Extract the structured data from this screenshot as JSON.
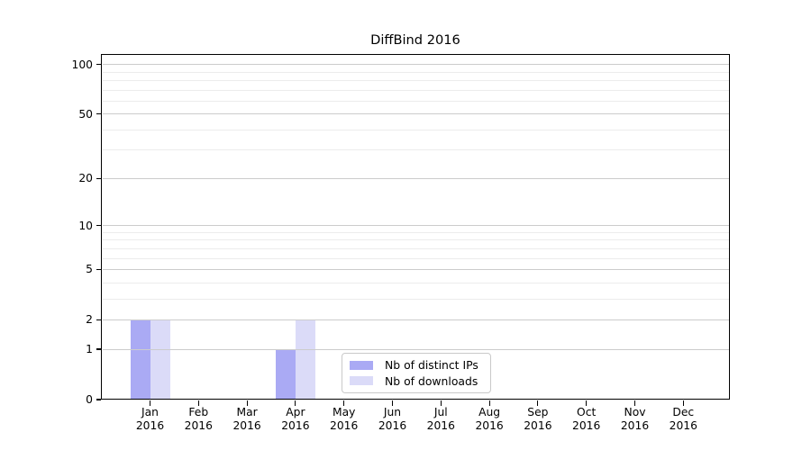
{
  "chart_data": {
    "type": "bar",
    "title": "DiffBind 2016",
    "x_categories": [
      {
        "month": "Jan",
        "year": "2016"
      },
      {
        "month": "Feb",
        "year": "2016"
      },
      {
        "month": "Mar",
        "year": "2016"
      },
      {
        "month": "Apr",
        "year": "2016"
      },
      {
        "month": "May",
        "year": "2016"
      },
      {
        "month": "Jun",
        "year": "2016"
      },
      {
        "month": "Jul",
        "year": "2016"
      },
      {
        "month": "Aug",
        "year": "2016"
      },
      {
        "month": "Sep",
        "year": "2016"
      },
      {
        "month": "Oct",
        "year": "2016"
      },
      {
        "month": "Nov",
        "year": "2016"
      },
      {
        "month": "Dec",
        "year": "2016"
      }
    ],
    "series": [
      {
        "name": "Nb of distinct IPs",
        "color": "#aaaaf4",
        "values": [
          2,
          0,
          0,
          1,
          0,
          0,
          0,
          0,
          0,
          0,
          0,
          0
        ]
      },
      {
        "name": "Nb of downloads",
        "color": "#dbdbf8",
        "values": [
          2,
          0,
          0,
          2,
          0,
          0,
          0,
          0,
          0,
          0,
          0,
          0
        ]
      }
    ],
    "yscale": "log1p",
    "yticks_major": [
      0,
      1,
      2,
      5,
      10,
      20,
      50,
      100
    ],
    "yticks_minor": [
      3,
      4,
      6,
      7,
      8,
      9,
      30,
      40,
      60,
      70,
      80,
      90
    ],
    "ylim": [
      0,
      116
    ],
    "grid": true,
    "legend_position": "lower-center"
  },
  "style": {
    "background": "#ffffff",
    "axis_color": "#000000",
    "text_color": "#000000",
    "grid_major_color": "#cccccc",
    "grid_minor_color": "#ececec",
    "legend_border_color": "#c9c9c9"
  }
}
